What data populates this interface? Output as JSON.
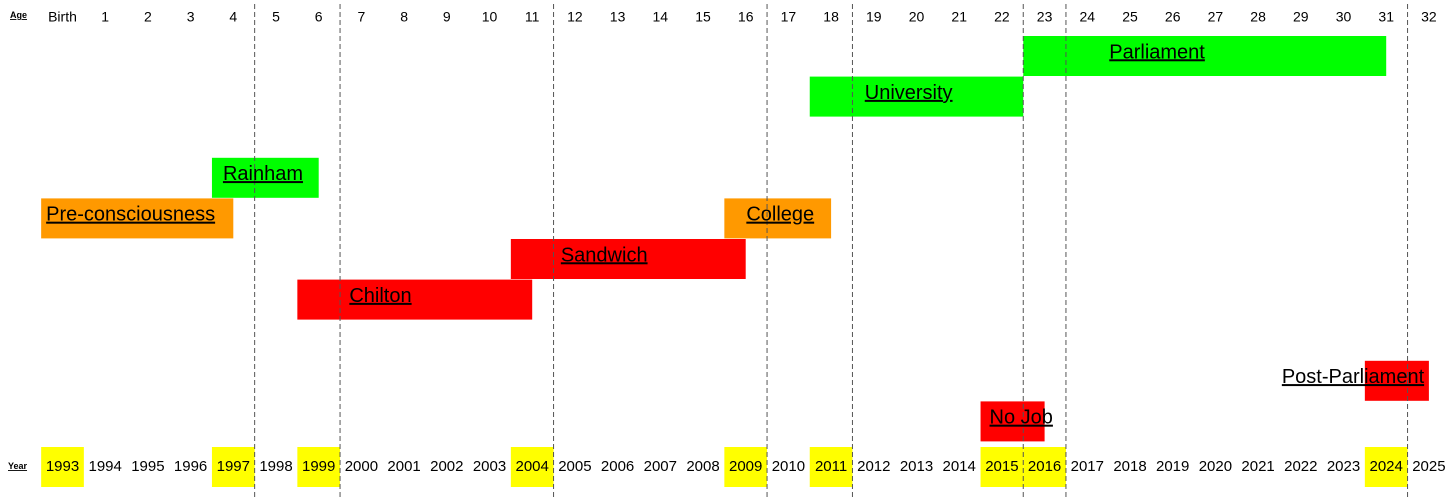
{
  "chart_data": {
    "type": "timeline",
    "row_labels": {
      "age": "Age",
      "year": "Year"
    },
    "ages": [
      "Birth",
      "1",
      "2",
      "3",
      "4",
      "5",
      "6",
      "7",
      "8",
      "9",
      "10",
      "11",
      "12",
      "13",
      "14",
      "15",
      "16",
      "17",
      "18",
      "19",
      "20",
      "21",
      "22",
      "23",
      "24",
      "25",
      "26",
      "27",
      "28",
      "29",
      "30",
      "31",
      "32"
    ],
    "years": [
      1993,
      1994,
      1995,
      1996,
      1997,
      1998,
      1999,
      2000,
      2001,
      2002,
      2003,
      2004,
      2005,
      2006,
      2007,
      2008,
      2009,
      2010,
      2011,
      2012,
      2013,
      2014,
      2015,
      2016,
      2017,
      2018,
      2019,
      2020,
      2021,
      2022,
      2023,
      2024,
      2025
    ],
    "highlighted_years": [
      1993,
      1997,
      1999,
      2004,
      2009,
      2011,
      2015,
      2016,
      2024
    ],
    "highlight_color": "#ffff00",
    "boundary_years": [
      1997.5,
      1999.5,
      2004.5,
      2009.5,
      2011.5,
      2015.5,
      2016.5,
      2024.5
    ],
    "colors": {
      "green": "#00ff00",
      "orange": "#ff9900",
      "red": "#ff0000"
    },
    "periods": [
      {
        "label": "Parliament",
        "start": 2016,
        "end": 2024.5,
        "color": "green",
        "lane": 0
      },
      {
        "label": "University",
        "start": 2011,
        "end": 2016,
        "color": "green",
        "lane": 1
      },
      {
        "label": "Rainham",
        "start": 1997,
        "end": 1999.5,
        "color": "green",
        "lane": 3
      },
      {
        "label": "Pre-consciousness",
        "start": 1993,
        "end": 1997.5,
        "color": "orange",
        "lane": 4
      },
      {
        "label": "College",
        "start": 2009,
        "end": 2011.5,
        "color": "orange",
        "lane": 4
      },
      {
        "label": "Sandwich",
        "start": 2004,
        "end": 2009.5,
        "color": "red",
        "lane": 5
      },
      {
        "label": "Chilton",
        "start": 1999,
        "end": 2004.5,
        "color": "red",
        "lane": 6
      },
      {
        "label": "Post-Parliament",
        "start": 2024,
        "end": 2025.5,
        "color": "red",
        "lane": 8
      },
      {
        "label": "No Job",
        "start": 2015,
        "end": 2016.5,
        "color": "red",
        "lane": 9
      }
    ]
  }
}
